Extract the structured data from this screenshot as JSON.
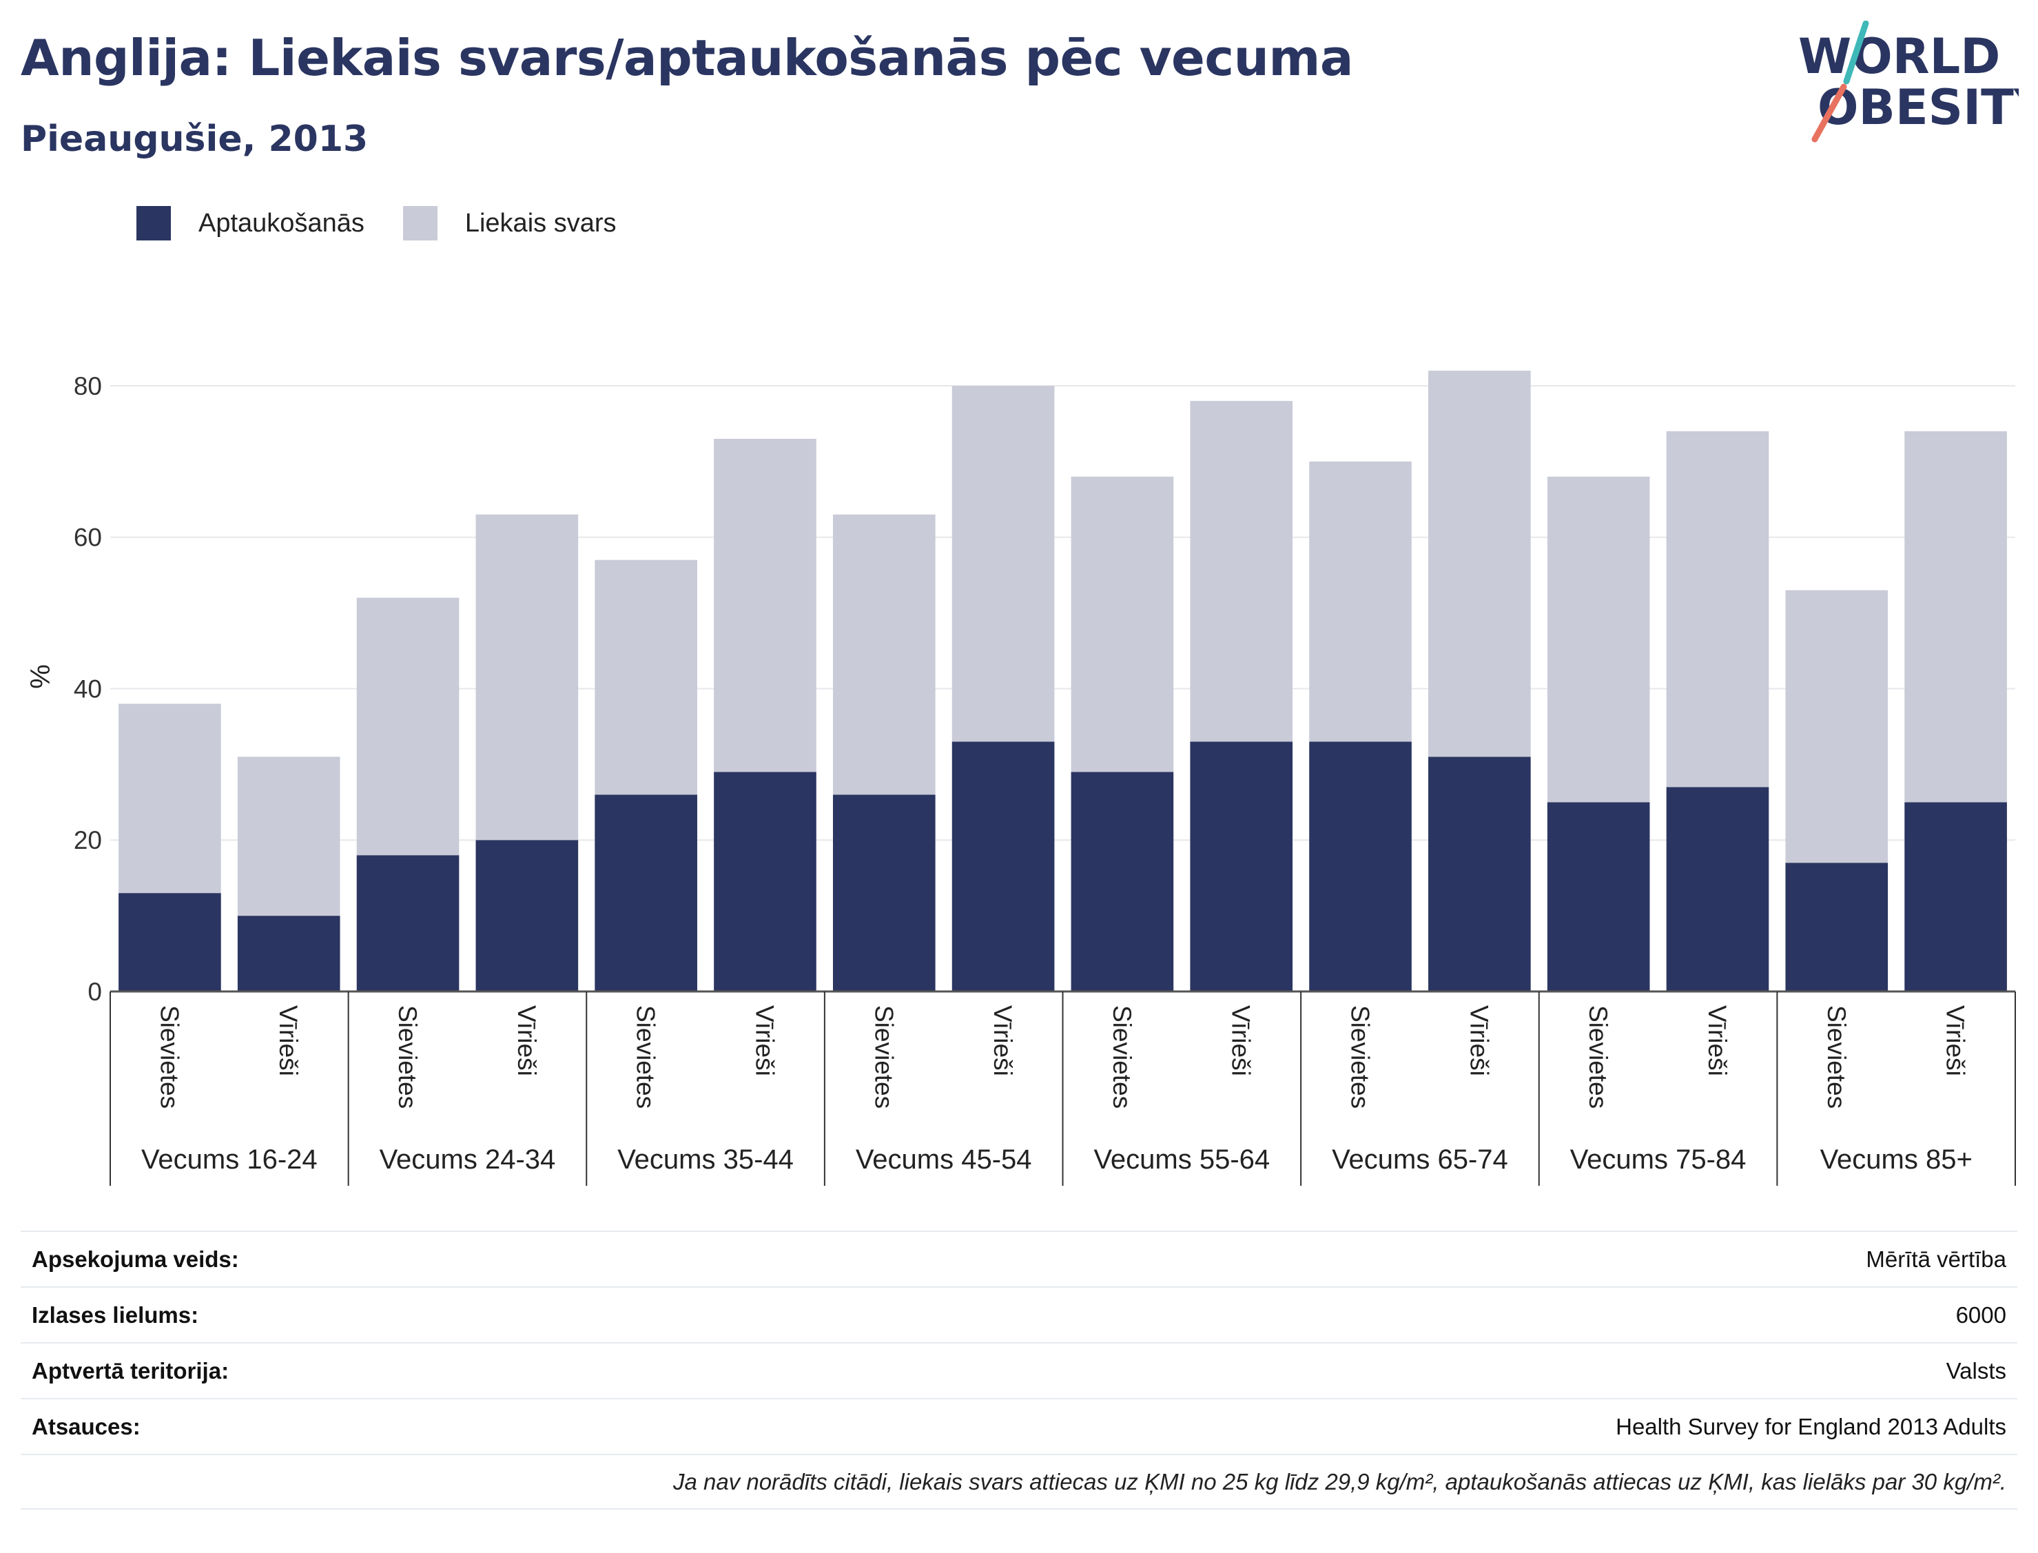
{
  "header": {
    "title": "Anglija: Liekais svars/aptaukošanās pēc vecuma",
    "subtitle": "Pieaugušie, 2013"
  },
  "logo": {
    "line1": "WORLD",
    "line2": "OBESITY"
  },
  "legend": [
    {
      "label": "Aptaukošanās",
      "color": "#2a3561"
    },
    {
      "label": "Liekais svars",
      "color": "#c9cbd8"
    }
  ],
  "chart_data": {
    "type": "bar",
    "stacked": true,
    "ylabel": "%",
    "ylim": [
      0,
      85
    ],
    "yticks": [
      0,
      20,
      40,
      60,
      80
    ],
    "grid": true,
    "legend_position": "top-left",
    "groups": [
      "Vecums 16-24",
      "Vecums 24-34",
      "Vecums 35-44",
      "Vecums 45-54",
      "Vecums 55-64",
      "Vecums 65-74",
      "Vecums 75-84",
      "Vecums 85+"
    ],
    "subcategories": [
      "Sievietes",
      "Vīrieši"
    ],
    "series": [
      {
        "name": "Aptaukošanās",
        "color": "#2a3561",
        "values": [
          13,
          10,
          18,
          20,
          26,
          29,
          26,
          33,
          29,
          33,
          33,
          31,
          25,
          27,
          17,
          25
        ]
      },
      {
        "name": "Liekais svars",
        "color": "#c9cbd8",
        "values": [
          25,
          21,
          34,
          43,
          31,
          44,
          37,
          47,
          39,
          45,
          37,
          51,
          43,
          47,
          36,
          49
        ]
      }
    ]
  },
  "info": {
    "rows": [
      {
        "key": "Apsekojuma veids:",
        "value": "Mērītā vērtība"
      },
      {
        "key": "Izlases lielums:",
        "value": "6000"
      },
      {
        "key": "Aptvertā teritorija:",
        "value": "Valsts"
      },
      {
        "key": "Atsauces:",
        "value": "Health Survey for England 2013 Adults"
      }
    ],
    "note": "Ja nav norādīts citādi, liekais svars attiecas uz ĶMI no 25 kg līdz 29,9 kg/m², aptaukošanās attiecas uz ĶMI, kas lielāks par 30 kg/m²."
  }
}
